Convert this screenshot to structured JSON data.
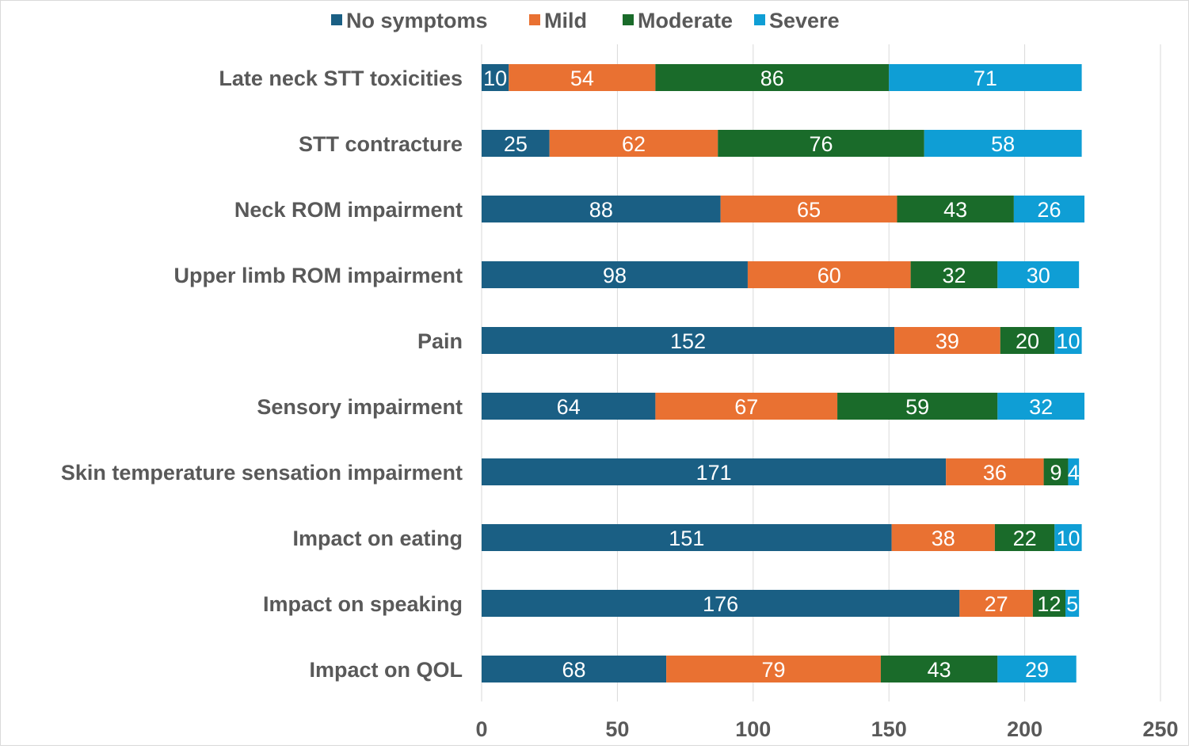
{
  "chart_data": {
    "type": "bar",
    "orientation": "horizontal",
    "stacked": true,
    "title": "",
    "xlabel": "",
    "ylabel": "",
    "xlim": [
      0,
      250
    ],
    "xticks": [
      0,
      50,
      100,
      150,
      200,
      250
    ],
    "grid": "vertical",
    "legend_position": "top",
    "categories": [
      "Late neck STT toxicities",
      "STT contracture",
      "Neck ROM impairment",
      "Upper limb ROM impairment",
      "Pain",
      "Sensory impairment",
      "Skin temperature sensation impairment",
      "Impact on eating",
      "Impact on speaking",
      "Impact on QOL"
    ],
    "series": [
      {
        "name": "No symptoms",
        "color": "#1a5f84",
        "values": [
          10,
          25,
          88,
          98,
          152,
          64,
          171,
          151,
          176,
          68
        ]
      },
      {
        "name": "Mild",
        "color": "#e97132",
        "values": [
          54,
          62,
          65,
          60,
          39,
          67,
          36,
          38,
          27,
          79
        ]
      },
      {
        "name": "Moderate",
        "color": "#1a6b2a",
        "values": [
          86,
          76,
          43,
          32,
          20,
          59,
          9,
          22,
          12,
          43
        ]
      },
      {
        "name": "Severe",
        "color": "#0f9ed5",
        "values": [
          71,
          58,
          26,
          30,
          10,
          32,
          4,
          10,
          5,
          29
        ]
      }
    ]
  },
  "colors": {
    "text": "#595959",
    "gridline": "#d9d9d9",
    "data_label": "#ffffff"
  }
}
